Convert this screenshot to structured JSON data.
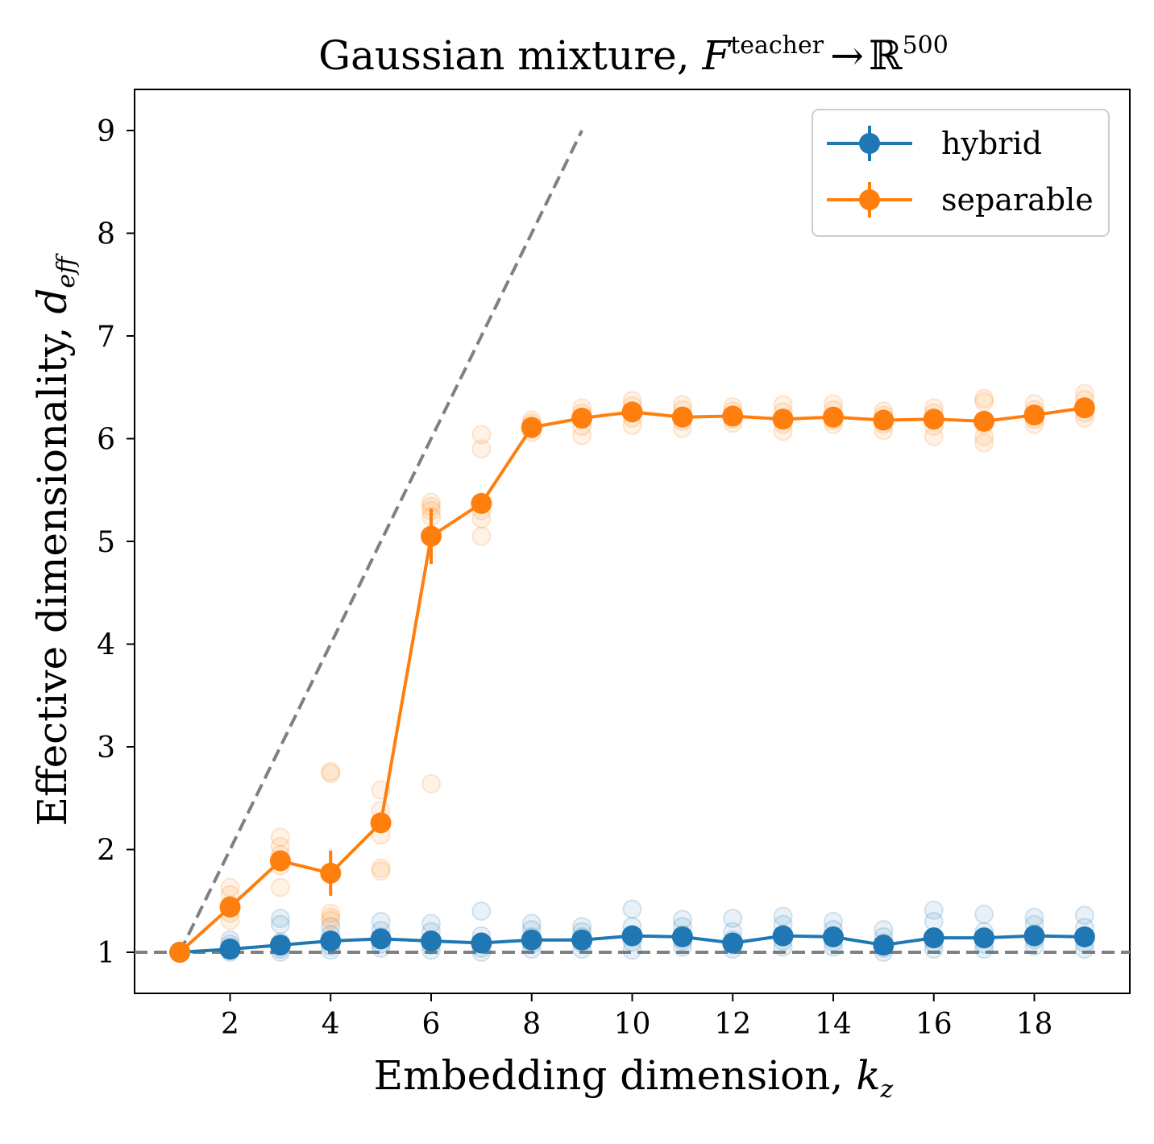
{
  "chart_data": {
    "type": "line",
    "title": {
      "prefix": "Gaussian mixture, ",
      "math_F": "F",
      "math_sup": "teacher",
      "arrow": "→",
      "math_R": "ℝ",
      "math_R_sup": "500"
    },
    "xlabel": {
      "text": "Embedding dimension, ",
      "math": "k",
      "math_sub": "z"
    },
    "ylabel": {
      "text": "Effective dimensionality, ",
      "math": "d",
      "math_sub": "eff"
    },
    "xlim": [
      0.1,
      19.9
    ],
    "ylim": [
      0.6,
      9.4
    ],
    "xticks": [
      2,
      4,
      6,
      8,
      10,
      12,
      14,
      16,
      18
    ],
    "yticks": [
      1,
      2,
      3,
      4,
      5,
      6,
      7,
      8,
      9
    ],
    "legend_position": "top-right",
    "x": [
      1,
      2,
      3,
      4,
      5,
      6,
      7,
      8,
      9,
      10,
      11,
      12,
      13,
      14,
      15,
      16,
      17,
      18,
      19
    ],
    "series": [
      {
        "name": "hybrid",
        "color": "#1f77b4",
        "values": [
          1.0,
          1.03,
          1.07,
          1.11,
          1.13,
          1.11,
          1.09,
          1.12,
          1.12,
          1.16,
          1.15,
          1.09,
          1.16,
          1.15,
          1.07,
          1.14,
          1.14,
          1.16,
          1.15
        ],
        "errors": [
          0.0,
          0.02,
          0.03,
          0.03,
          0.03,
          0.03,
          0.03,
          0.03,
          0.03,
          0.04,
          0.03,
          0.03,
          0.03,
          0.03,
          0.02,
          0.04,
          0.03,
          0.03,
          0.03
        ],
        "samples": [
          [
            1.0,
            1.0
          ],
          [
            1.0,
            1.02,
            1.05,
            1.08,
            1.12
          ],
          [
            1.0,
            1.03,
            1.06,
            1.1,
            1.27,
            1.33
          ],
          [
            1.02,
            1.06,
            1.1,
            1.17,
            1.25
          ],
          [
            1.04,
            1.08,
            1.15,
            1.21,
            1.3
          ],
          [
            1.02,
            1.07,
            1.12,
            1.2,
            1.28
          ],
          [
            1.0,
            1.04,
            1.1,
            1.16,
            1.4
          ],
          [
            1.03,
            1.08,
            1.15,
            1.22,
            1.28
          ],
          [
            1.03,
            1.09,
            1.15,
            1.2,
            1.25
          ],
          [
            1.02,
            1.1,
            1.17,
            1.25,
            1.42
          ],
          [
            1.05,
            1.11,
            1.17,
            1.25,
            1.32
          ],
          [
            1.03,
            1.07,
            1.12,
            1.2,
            1.33
          ],
          [
            1.05,
            1.11,
            1.17,
            1.27,
            1.35
          ],
          [
            1.05,
            1.1,
            1.15,
            1.22,
            1.3
          ],
          [
            1.0,
            1.04,
            1.09,
            1.15,
            1.22
          ],
          [
            1.03,
            1.09,
            1.15,
            1.3,
            1.41
          ],
          [
            1.03,
            1.08,
            1.13,
            1.2,
            1.37
          ],
          [
            1.06,
            1.12,
            1.18,
            1.27,
            1.34
          ],
          [
            1.03,
            1.09,
            1.15,
            1.24,
            1.36
          ]
        ]
      },
      {
        "name": "separable",
        "color": "#ff7f0e",
        "values": [
          1.0,
          1.44,
          1.89,
          1.77,
          2.26,
          5.05,
          5.37,
          6.11,
          6.2,
          6.26,
          6.21,
          6.22,
          6.19,
          6.21,
          6.18,
          6.19,
          6.17,
          6.23,
          6.3
        ],
        "errors": [
          0.0,
          0.05,
          0.06,
          0.22,
          0.1,
          0.27,
          0.1,
          0.03,
          0.03,
          0.03,
          0.03,
          0.03,
          0.03,
          0.03,
          0.03,
          0.04,
          0.05,
          0.03,
          0.03
        ],
        "samples": [
          [
            1.0,
            1.0
          ],
          [
            1.31,
            1.38,
            1.46,
            1.56,
            1.63
          ],
          [
            1.63,
            1.84,
            1.95,
            2.03,
            2.12
          ],
          [
            1.31,
            1.34,
            1.38,
            2.74,
            2.76
          ],
          [
            1.79,
            1.82,
            2.14,
            2.38,
            2.58
          ],
          [
            2.64,
            5.24,
            5.3,
            5.34,
            5.38
          ],
          [
            5.05,
            5.22,
            5.3,
            5.9,
            6.04
          ],
          [
            6.06,
            6.09,
            6.12,
            6.15,
            6.18
          ],
          [
            6.03,
            6.12,
            6.2,
            6.25,
            6.3
          ],
          [
            6.13,
            6.2,
            6.26,
            6.32,
            6.37
          ],
          [
            6.1,
            6.17,
            6.22,
            6.28,
            6.33
          ],
          [
            6.15,
            6.19,
            6.23,
            6.27,
            6.31
          ],
          [
            6.07,
            6.14,
            6.2,
            6.26,
            6.33
          ],
          [
            6.14,
            6.18,
            6.22,
            6.28,
            6.34
          ],
          [
            6.08,
            6.14,
            6.19,
            6.23,
            6.27
          ],
          [
            6.02,
            6.12,
            6.2,
            6.25,
            6.3
          ],
          [
            5.96,
            6.02,
            6.14,
            6.36,
            6.39
          ],
          [
            6.14,
            6.19,
            6.23,
            6.28,
            6.34
          ],
          [
            6.2,
            6.25,
            6.3,
            6.38,
            6.44
          ]
        ]
      }
    ],
    "reference_lines": [
      {
        "name": "diagonal",
        "style": "dashed",
        "color": "#808080",
        "x": [
          1,
          9
        ],
        "y": [
          1,
          9
        ]
      },
      {
        "name": "baseline",
        "style": "dashed",
        "color": "#808080",
        "y": 1
      }
    ]
  }
}
